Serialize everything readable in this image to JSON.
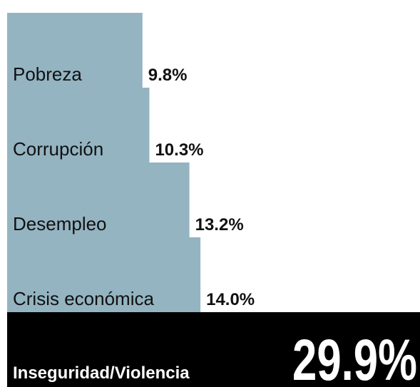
{
  "chart_data": {
    "type": "hbar",
    "categories": [
      "Pobreza",
      "Corrupción",
      "Desempleo",
      "Crisis económica",
      "Inseguridad/Violencia"
    ],
    "values": [
      9.8,
      10.3,
      13.2,
      14.0,
      29.9
    ],
    "value_labels": [
      "9.8%",
      "10.3%",
      "13.2%",
      "14.0%",
      "29.9%"
    ],
    "colors": [
      "#94b4c1",
      "#94b4c1",
      "#94b4c1",
      "#94b4c1",
      "#000000"
    ]
  }
}
